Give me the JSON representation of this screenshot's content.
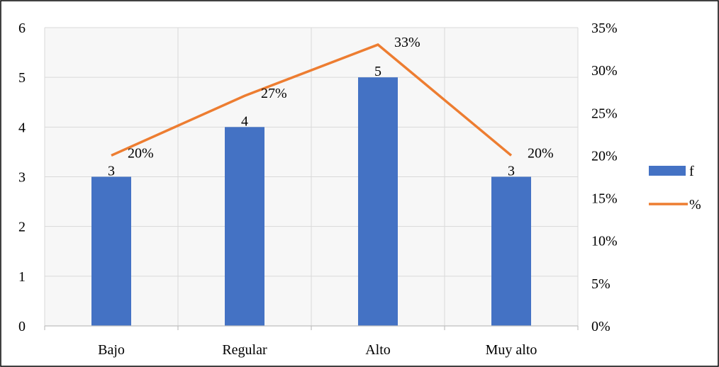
{
  "chart_data": {
    "type": "bar",
    "categories": [
      "Bajo",
      "Regular",
      "Alto",
      "Muy alto"
    ],
    "series": [
      {
        "name": "f",
        "kind": "bar",
        "axis": "left",
        "values": [
          3,
          4,
          5,
          3
        ],
        "labels": [
          "3",
          "4",
          "5",
          "3"
        ]
      },
      {
        "name": "%",
        "kind": "line",
        "axis": "right",
        "values": [
          20,
          27,
          33,
          20
        ],
        "labels": [
          "20%",
          "27%",
          "33%",
          "20%"
        ]
      }
    ],
    "ylim": [
      0,
      6
    ],
    "y_ticks": [
      "0",
      "1",
      "2",
      "3",
      "4",
      "5",
      "6"
    ],
    "y2lim": [
      0,
      35
    ],
    "y2_ticks": [
      "0%",
      "5%",
      "10%",
      "15%",
      "20%",
      "25%",
      "30%",
      "35%"
    ],
    "grid": true,
    "legend": "right",
    "colors": {
      "bar": "#4472c4",
      "line": "#ed7d31",
      "grid": "#d9d9d9",
      "border": "#000000"
    }
  }
}
